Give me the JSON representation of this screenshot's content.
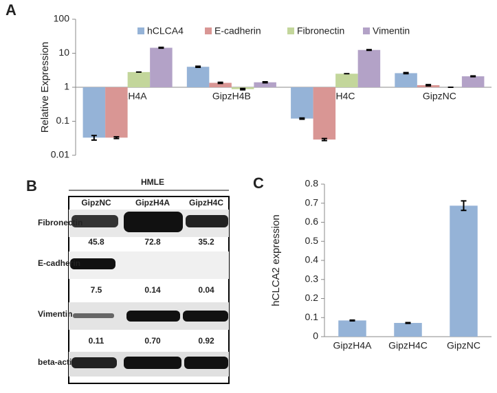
{
  "chart_data": [
    {
      "type": "bar",
      "panel_label": "A",
      "y_label": "Relative Expression",
      "log_scale": true,
      "categories": [
        "GipzH4A",
        "GipzH4B",
        "GipzH4C",
        "GipzNC"
      ],
      "series": [
        {
          "name": "hCLCA4",
          "color": "#95b3d7",
          "values": [
            0.033,
            4.0,
            0.12,
            2.6
          ],
          "errors": [
            0.005,
            0.15,
            0.005,
            0.1
          ]
        },
        {
          "name": "E-cadherin",
          "color": "#d99694",
          "values": [
            0.033,
            1.35,
            0.029,
            1.15
          ],
          "errors": [
            0.002,
            0.05,
            0.002,
            0.05
          ]
        },
        {
          "name": "Fibronectin",
          "color": "#c3d69b",
          "values": [
            2.8,
            0.88,
            2.5,
            1.0
          ],
          "errors": [
            0,
            0.04,
            0,
            0
          ]
        },
        {
          "name": "Vimentin",
          "color": "#b3a2c7",
          "values": [
            14.5,
            1.4,
            12.5,
            2.1
          ],
          "errors": [
            0.4,
            0.05,
            0.3,
            0.06
          ]
        }
      ],
      "ylim": [
        0.01,
        100
      ],
      "yticks": [
        0.01,
        0.1,
        1,
        10,
        100
      ]
    },
    {
      "type": "bar",
      "panel_label": "C",
      "y_label": "hCLCA2  expression",
      "categories": [
        "GipzH4A",
        "GipzH4C",
        "GipzNC"
      ],
      "series": [
        {
          "color": "#95b3d7",
          "values": [
            0.085,
            0.072,
            0.687
          ],
          "errors": [
            0.002,
            0.002,
            0.025
          ]
        }
      ],
      "ylim": [
        0,
        0.8
      ],
      "yticks": [
        0,
        0.1,
        0.2,
        0.3,
        0.4,
        0.5,
        0.6,
        0.7,
        0.8
      ]
    }
  ],
  "blot": {
    "panel_label": "B",
    "header": "HMLE",
    "lanes": [
      "GipzNC",
      "GipzH4A",
      "GipzH4C"
    ],
    "rows": [
      {
        "name": "Fibronectin",
        "quantities": [
          "45.8",
          "72.8",
          "35.2"
        ]
      },
      {
        "name": "E-cadherin",
        "quantities": [
          "7.5",
          "0.14",
          "0.04"
        ]
      },
      {
        "name": "Vimentin",
        "quantities": [
          "0.11",
          "0.70",
          "0.92"
        ]
      },
      {
        "name": "beta-actin"
      }
    ]
  }
}
